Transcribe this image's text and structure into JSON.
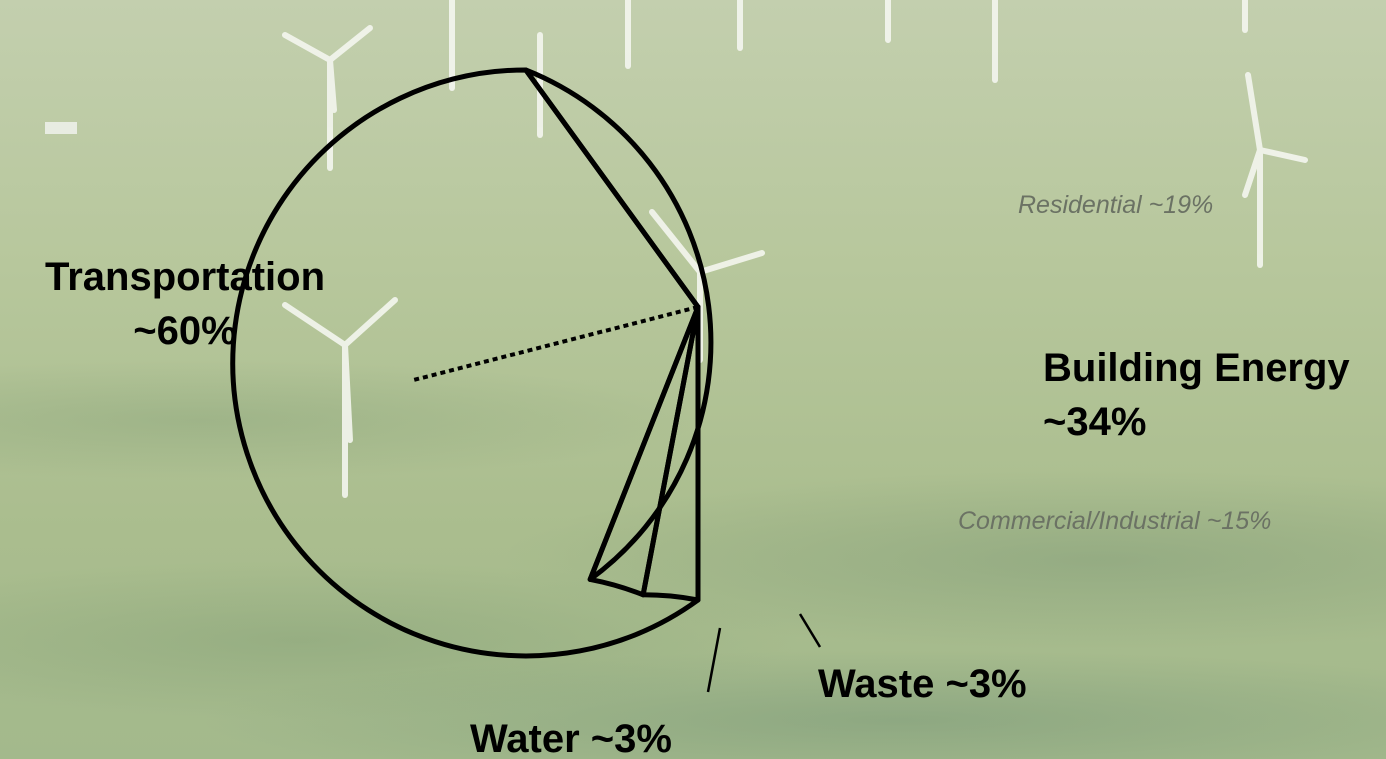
{
  "chart_data": {
    "type": "pie",
    "categories": [
      "Transportation",
      "Building Energy",
      "Water",
      "Waste"
    ],
    "values": [
      60,
      34,
      3,
      3
    ],
    "value_labels": [
      "~60%",
      "~34%",
      "~3%",
      "~3%"
    ],
    "sub_categories": [
      "Residential",
      "Commercial/Industrial"
    ],
    "sub_values": [
      19,
      15
    ],
    "sub_value_labels": [
      "~19%",
      "~15%"
    ],
    "color": "#000000"
  }
}
